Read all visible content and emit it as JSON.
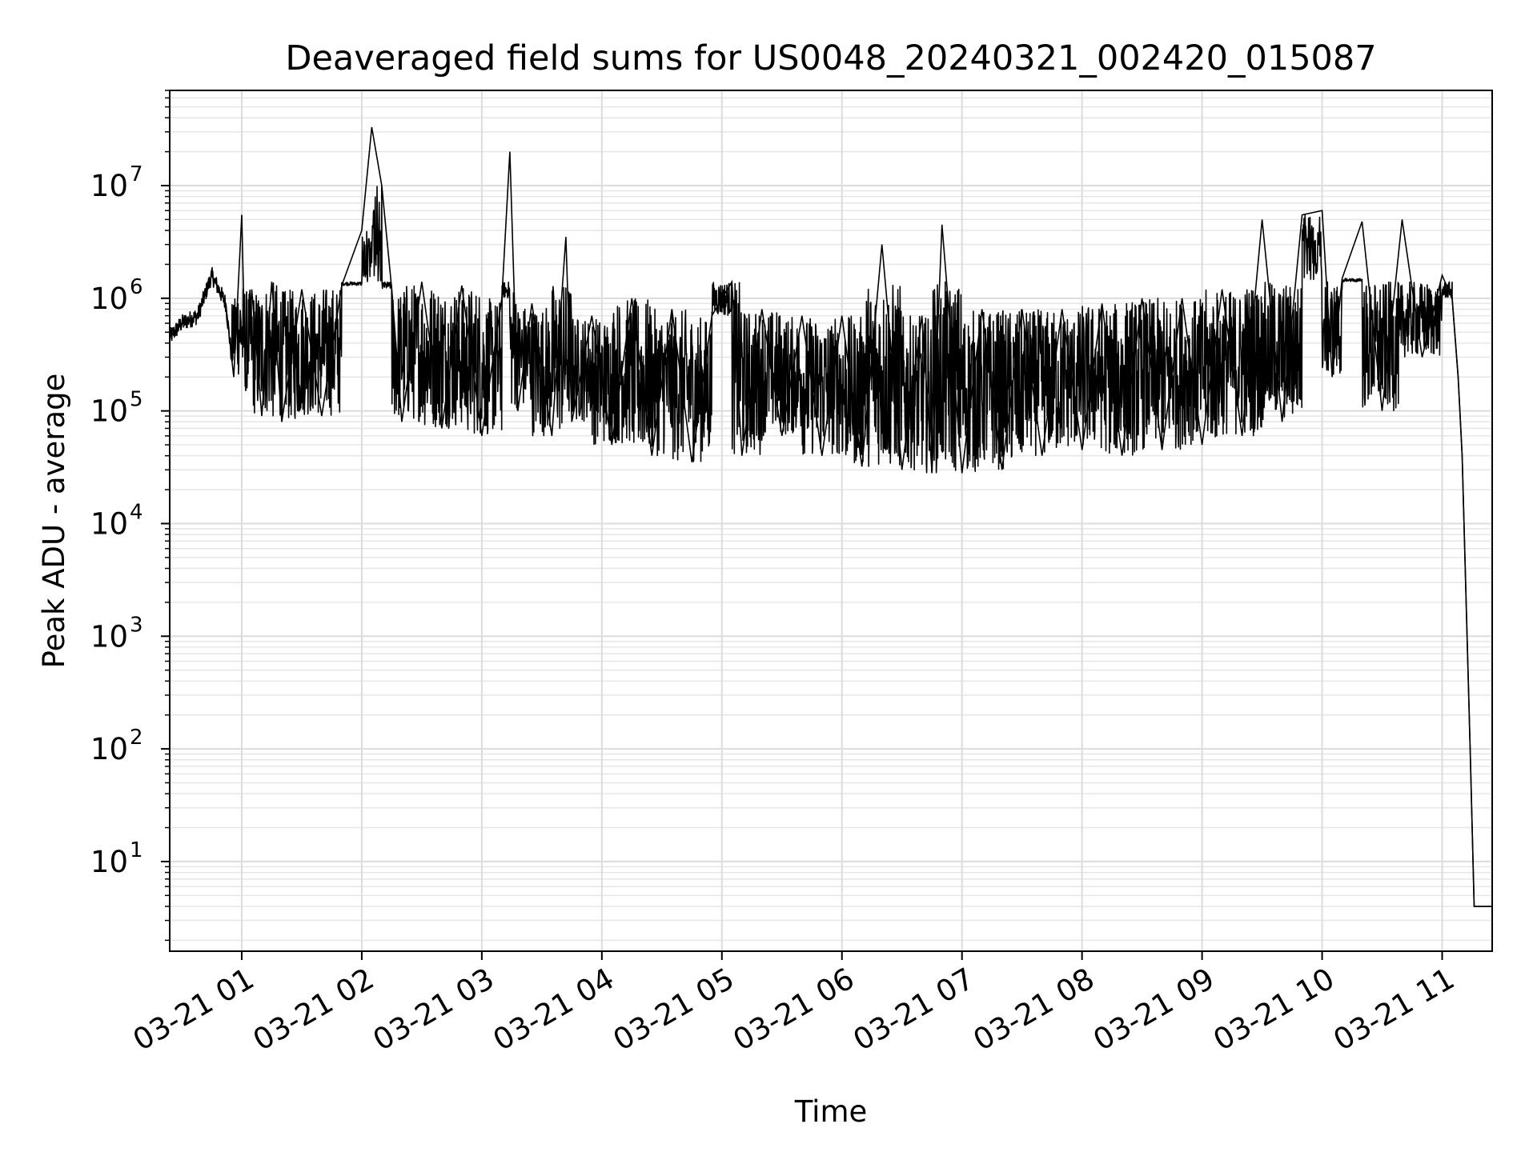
{
  "chart_data": {
    "type": "line",
    "title": "Deaveraged field sums for US0048_20240321_002420_015087",
    "xlabel": "Time",
    "ylabel": "Peak ADU - average",
    "y_scale": "log",
    "ylim": [
      1.6,
      70000000
    ],
    "xlim": [
      "2024-03-21 00:24",
      "2024-03-21 11:25"
    ],
    "grid": "major and minor (light gray)",
    "line_color": "#000000",
    "x_ticks": [
      "03-21 01",
      "03-21 02",
      "03-21 03",
      "03-21 04",
      "03-21 05",
      "03-21 06",
      "03-21 07",
      "03-21 08",
      "03-21 09",
      "03-21 10",
      "03-21 11"
    ],
    "y_ticks": [
      {
        "value": 10,
        "base": "10",
        "exp": "1"
      },
      {
        "value": 100,
        "base": "10",
        "exp": "2"
      },
      {
        "value": 1000,
        "base": "10",
        "exp": "3"
      },
      {
        "value": 10000,
        "base": "10",
        "exp": "4"
      },
      {
        "value": 100000,
        "base": "10",
        "exp": "5"
      },
      {
        "value": 1000000,
        "base": "10",
        "exp": "6"
      },
      {
        "value": 10000000,
        "base": "10",
        "exp": "7"
      }
    ],
    "series": [
      {
        "x": [
          "2024-03-21 00:24",
          "2024-03-21 00:30",
          "2024-03-21 00:38",
          "2024-03-21 00:45",
          "2024-03-21 00:52",
          "2024-03-21 00:56",
          "2024-03-21 01:00",
          "2024-03-21 01:02",
          "2024-03-21 01:05",
          "2024-03-21 01:10",
          "2024-03-21 01:15",
          "2024-03-21 01:20",
          "2024-03-21 01:30",
          "2024-03-21 01:40",
          "2024-03-21 01:50",
          "2024-03-21 02:00",
          "2024-03-21 02:05",
          "2024-03-21 02:10",
          "2024-03-21 02:15",
          "2024-03-21 02:20",
          "2024-03-21 02:30",
          "2024-03-21 02:40",
          "2024-03-21 02:50",
          "2024-03-21 03:00",
          "2024-03-21 03:10",
          "2024-03-21 03:14",
          "2024-03-21 03:18",
          "2024-03-21 03:25",
          "2024-03-21 03:35",
          "2024-03-21 03:42",
          "2024-03-21 03:45",
          "2024-03-21 03:55",
          "2024-03-21 04:05",
          "2024-03-21 04:15",
          "2024-03-21 04:25",
          "2024-03-21 04:35",
          "2024-03-21 04:45",
          "2024-03-21 04:55",
          "2024-03-21 05:05",
          "2024-03-21 05:10",
          "2024-03-21 05:20",
          "2024-03-21 05:30",
          "2024-03-21 05:40",
          "2024-03-21 05:50",
          "2024-03-21 06:00",
          "2024-03-21 06:10",
          "2024-03-21 06:20",
          "2024-03-21 06:30",
          "2024-03-21 06:40",
          "2024-03-21 06:45",
          "2024-03-21 06:50",
          "2024-03-21 07:00",
          "2024-03-21 07:10",
          "2024-03-21 07:20",
          "2024-03-21 07:30",
          "2024-03-21 07:40",
          "2024-03-21 07:50",
          "2024-03-21 08:00",
          "2024-03-21 08:10",
          "2024-03-21 08:20",
          "2024-03-21 08:30",
          "2024-03-21 08:40",
          "2024-03-21 08:50",
          "2024-03-21 09:00",
          "2024-03-21 09:10",
          "2024-03-21 09:20",
          "2024-03-21 09:30",
          "2024-03-21 09:40",
          "2024-03-21 09:50",
          "2024-03-21 10:00",
          "2024-03-21 10:05",
          "2024-03-21 10:10",
          "2024-03-21 10:20",
          "2024-03-21 10:30",
          "2024-03-21 10:40",
          "2024-03-21 10:50",
          "2024-03-21 11:00",
          "2024-03-21 11:05",
          "2024-03-21 11:08",
          "2024-03-21 11:10",
          "2024-03-21 11:12",
          "2024-03-21 11:14",
          "2024-03-21 11:16",
          "2024-03-21 11:18",
          "2024-03-21 11:20",
          "2024-03-21 11:22",
          "2024-03-21 11:25"
        ],
        "y": [
          450000,
          600000,
          700000,
          1600000,
          900000,
          200000,
          5500000,
          150000,
          1200000,
          90000,
          1400000,
          80000,
          1200000,
          90000,
          1300000,
          4000000,
          33000000,
          10000000,
          1200000,
          80000,
          1400000,
          70000,
          1300000,
          60000,
          1000000,
          20000000,
          100000,
          900000,
          60000,
          3500000,
          80000,
          700000,
          50000,
          1000000,
          40000,
          800000,
          35000,
          700000,
          1400000,
          40000,
          800000,
          60000,
          700000,
          40000,
          700000,
          32000,
          3000000,
          30000,
          700000,
          28000,
          4500000,
          28000,
          800000,
          30000,
          800000,
          40000,
          800000,
          45000,
          900000,
          40000,
          1000000,
          45000,
          1000000,
          50000,
          1200000,
          60000,
          5000000,
          80000,
          5500000,
          6000000,
          200000,
          1500000,
          4800000,
          100000,
          5000000,
          300000,
          1600000,
          1000000,
          200000,
          40000,
          2000,
          100,
          4,
          4,
          4,
          4,
          4
        ]
      }
    ]
  }
}
